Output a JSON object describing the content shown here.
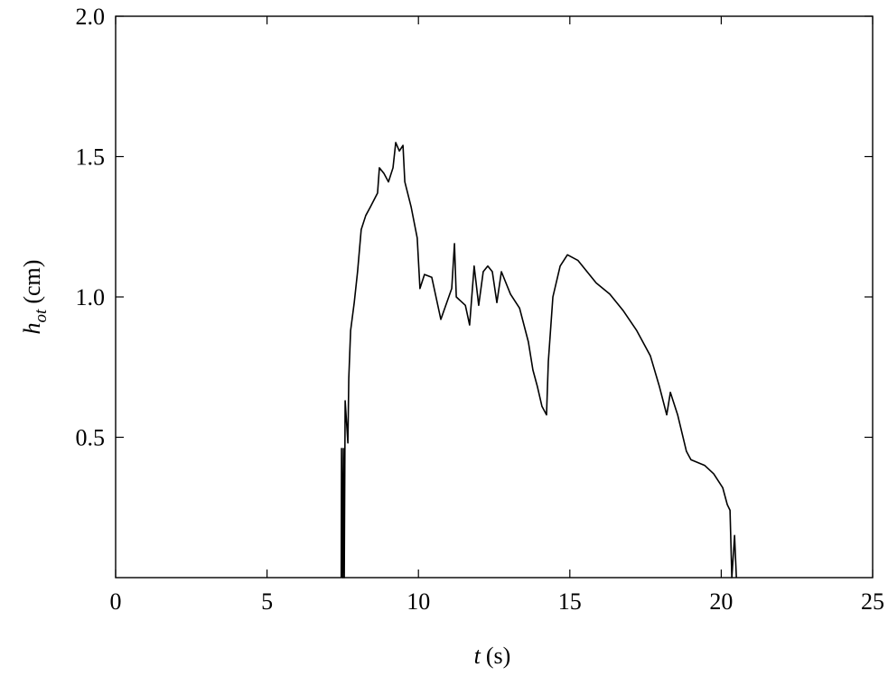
{
  "chart_data": {
    "type": "line",
    "xlabel": {
      "symbol": "t",
      "unit": "(s)"
    },
    "ylabel": {
      "symbol": "h",
      "subscript": "ot",
      "unit": "(cm)"
    },
    "xlim": [
      0,
      25
    ],
    "xticks": [
      0,
      5,
      10,
      15,
      20,
      25
    ],
    "ylim": [
      0,
      2.0
    ],
    "yticks": [
      0.5,
      {
        "value": 1.0,
        "label": "1.0"
      },
      1.5,
      {
        "value": 2.0,
        "label": "2.0"
      }
    ],
    "series": [
      {
        "color": "#000000",
        "x": [
          7.45,
          7.46,
          7.5,
          7.52,
          7.55,
          7.58,
          7.67,
          7.7,
          7.76,
          7.88,
          7.99,
          8.11,
          8.26,
          8.41,
          8.65,
          8.71,
          8.86,
          9.01,
          9.16,
          9.25,
          9.37,
          9.49,
          9.55,
          9.76,
          9.96,
          10.05,
          10.2,
          10.44,
          10.74,
          11.1,
          11.19,
          11.25,
          11.55,
          11.69,
          11.84,
          11.99,
          12.14,
          12.29,
          12.44,
          12.59,
          12.74,
          13.04,
          13.34,
          13.63,
          13.78,
          13.93,
          14.08,
          14.23,
          14.29,
          14.44,
          14.68,
          14.92,
          15.27,
          15.87,
          16.32,
          16.77,
          17.21,
          17.66,
          17.96,
          18.2,
          18.32,
          18.56,
          18.85,
          19.0,
          19.45,
          19.75,
          20.05,
          20.2,
          20.29,
          20.35,
          20.44,
          20.5
        ],
        "values": [
          0,
          0.46,
          0,
          0.46,
          0,
          0.63,
          0.48,
          0.71,
          0.88,
          0.98,
          1.09,
          1.24,
          1.29,
          1.32,
          1.37,
          1.46,
          1.44,
          1.41,
          1.46,
          1.55,
          1.52,
          1.54,
          1.41,
          1.32,
          1.21,
          1.03,
          1.08,
          1.07,
          0.92,
          1.03,
          1.19,
          1.0,
          0.97,
          0.9,
          1.11,
          0.97,
          1.09,
          1.11,
          1.09,
          0.98,
          1.09,
          1.01,
          0.96,
          0.84,
          0.74,
          0.68,
          0.61,
          0.58,
          0.77,
          1.0,
          1.11,
          1.15,
          1.13,
          1.05,
          1.01,
          0.95,
          0.88,
          0.79,
          0.68,
          0.58,
          0.66,
          0.58,
          0.45,
          0.42,
          0.4,
          0.37,
          0.32,
          0.26,
          0.24,
          0,
          0.15,
          0
        ]
      }
    ]
  }
}
